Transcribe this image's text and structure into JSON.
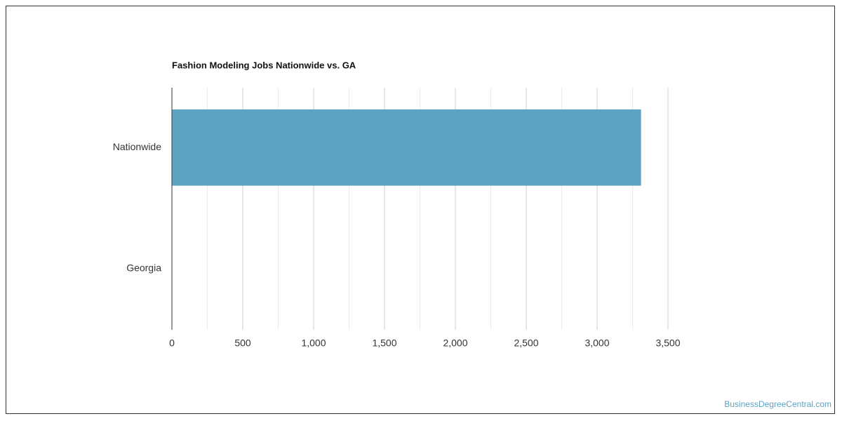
{
  "chart_data": {
    "type": "hbar",
    "title": "Fashion Modeling Jobs Nationwide vs. GA",
    "categories": [
      "Nationwide",
      "Georgia"
    ],
    "values": [
      3310,
      0
    ],
    "color": "#5ba3c0",
    "xlim": [
      0,
      3500
    ],
    "xticks": [
      0,
      {
        "value": 500,
        "label": "500"
      },
      {
        "value": 1000,
        "label": "1,000"
      },
      {
        "value": 1500,
        "label": "1,500"
      },
      {
        "value": 2000,
        "label": "2,000"
      },
      {
        "value": 2500,
        "label": "2,500"
      },
      {
        "value": 3000,
        "label": "3,000"
      },
      {
        "value": 3500,
        "label": "3,500"
      }
    ],
    "minor_xticks": [
      250,
      750,
      1250,
      1750,
      2250,
      2750,
      3250
    ],
    "grid": true,
    "source": "BusinessDegreeCentral.com"
  }
}
